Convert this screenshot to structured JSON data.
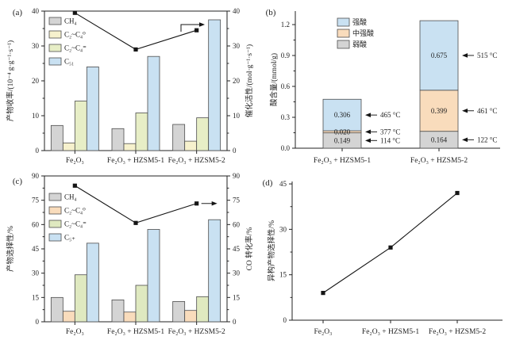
{
  "figure": {
    "background": "#ffffff",
    "text_color": "#1f1f1f",
    "line_color": "#151515",
    "bar_stroke": "#4d4d4d"
  },
  "palette": {
    "gray": "#d4d4d4",
    "yellow": "#f6f1cd",
    "green_a": "#e7eec6",
    "green_c": "#dfe9c0",
    "blue": "#c9e1f2",
    "peach": "#f9dcbc"
  },
  "chart_data": [
    {
      "id": "a",
      "panel_label": "(a)",
      "type": "bar",
      "subtype": "grouped-bar-with-line",
      "categories": [
        "Fe₂O₃",
        "Fe₂O₃ + HZSM5-1",
        "Fe₂O₃ + HZSM5-2"
      ],
      "series": [
        {
          "name": "CH₄",
          "color_key": "gray",
          "values": [
            7.2,
            6.3,
            7.5
          ]
        },
        {
          "name": "C₂~C₄⁰",
          "color_key": "yellow",
          "values": [
            2.2,
            2.0,
            2.7
          ]
        },
        {
          "name": "C₂~C₄⁼",
          "color_key": "green_a",
          "values": [
            14.2,
            10.8,
            9.4
          ]
        },
        {
          "name": "C₅₁",
          "color_key": "blue",
          "values": [
            24,
            27,
            37.5
          ]
        }
      ],
      "line_series": {
        "name": "催化活性",
        "axis": "right",
        "values": [
          39.5,
          29,
          34.5
        ]
      },
      "ylabel": "产物收率/(10⁻⁴ g·g⁻¹·s⁻¹)",
      "ylabel_right": "催化活性/(mol·g⁻¹·s⁻¹)",
      "ylim": [
        0,
        40
      ],
      "yticks": [
        0,
        10,
        20,
        30,
        40
      ],
      "ytick_labels": [
        "0",
        "10",
        "20",
        "30",
        "40"
      ],
      "minor_step": 5,
      "legend_position": "upper-left",
      "grid": false,
      "legend": [
        {
          "label": "CH₄",
          "color_key": "gray"
        },
        {
          "label": "C₂~C₄⁰",
          "color_key": "yellow"
        },
        {
          "label": "C₂~C₄⁼",
          "color_key": "green_a"
        },
        {
          "label": "C₅₁",
          "color_key": "blue"
        }
      ],
      "right_axis_indicator": true
    },
    {
      "id": "b",
      "panel_label": "(b)",
      "type": "bar",
      "subtype": "stacked-bar",
      "categories": [
        "Fe₂O₃ + HZSM5-1",
        "Fe₂O₃ + HZSM5-2"
      ],
      "series": [
        {
          "name": "弱酸",
          "color_key": "gray",
          "values": [
            0.149,
            0.164
          ]
        },
        {
          "name": "中强酸",
          "color_key": "peach",
          "values": [
            0.02,
            0.399
          ]
        },
        {
          "name": "强酸",
          "color_key": "blue",
          "values": [
            0.306,
            0.675
          ]
        }
      ],
      "segment_labels": [
        [
          "0.149",
          "0.020",
          "0.306"
        ],
        [
          "0.164",
          "0.399",
          "0.675"
        ]
      ],
      "annotations": [
        {
          "bar": 0,
          "segment": 2,
          "text": "465 °C"
        },
        {
          "bar": 0,
          "segment": 1,
          "text": "377 °C"
        },
        {
          "bar": 0,
          "segment": 0,
          "text": "114 °C"
        },
        {
          "bar": 1,
          "segment": 2,
          "text": "515 °C"
        },
        {
          "bar": 1,
          "segment": 1,
          "text": "461 °C"
        },
        {
          "bar": 1,
          "segment": 0,
          "text": "122 °C"
        }
      ],
      "ylabel": "酸含量/(mmol/g)",
      "ylim": [
        0,
        1.331
      ],
      "yticks": [
        0,
        0.3,
        0.6,
        0.9,
        1.2
      ],
      "ytick_labels": [
        "0.0",
        "0.3",
        "0.6",
        "0.9",
        "1.2"
      ],
      "minor_step": 0.15,
      "legend_position": "upper-left",
      "grid": false,
      "legend": [
        {
          "label": "强酸",
          "color_key": "blue"
        },
        {
          "label": "中强酸",
          "color_key": "peach"
        },
        {
          "label": "弱酸",
          "color_key": "gray"
        }
      ]
    },
    {
      "id": "c",
      "panel_label": "(c)",
      "type": "bar",
      "subtype": "grouped-bar-with-line",
      "categories": [
        "Fe₂O₃",
        "Fe₂O₃ + HZSM5-1",
        "Fe₂O₃ + HZSM5-2"
      ],
      "series": [
        {
          "name": "CH₄",
          "color_key": "gray",
          "values": [
            15,
            13.5,
            12.5
          ]
        },
        {
          "name": "C₂~C₄⁰",
          "color_key": "peach",
          "values": [
            6.5,
            6,
            7
          ]
        },
        {
          "name": "C₂~C₄⁼",
          "color_key": "green_c",
          "values": [
            29,
            22.5,
            15.5
          ]
        },
        {
          "name": "C₅₊",
          "color_key": "blue",
          "values": [
            48.5,
            57,
            63
          ]
        }
      ],
      "line_series": {
        "name": "CO 转化率",
        "axis": "right",
        "values": [
          84,
          61,
          73
        ]
      },
      "ylabel": "产物选择性/%",
      "ylabel_right": "CO 转化率/%",
      "ylim": [
        0,
        90
      ],
      "yticks": [
        0,
        15,
        30,
        45,
        60,
        75,
        90
      ],
      "ytick_labels": [
        "0",
        "15",
        "30",
        "45",
        "60",
        "75",
        "90"
      ],
      "minor_step": 7.5,
      "legend_position": "upper-left",
      "grid": false,
      "legend": [
        {
          "label": "CH₄",
          "color_key": "gray"
        },
        {
          "label": "C₂~C₄⁰",
          "color_key": "peach"
        },
        {
          "label": "C₂~C₄⁼",
          "color_key": "green_c"
        },
        {
          "label": "C₅₊",
          "color_key": "blue"
        }
      ],
      "point_arrow_on_last": true
    },
    {
      "id": "d",
      "panel_label": "(d)",
      "type": "line",
      "categories": [
        "Fe₂O₃",
        "Fe₂O₃ + HZSM5-1",
        "Fe₂O₃ + HZSM5-2"
      ],
      "line_series": {
        "name": "异构产物选择性",
        "values": [
          9,
          24,
          42
        ]
      },
      "ylabel": "异构产物选择性/%",
      "ylim": [
        0,
        45.8
      ],
      "yticks": [
        0,
        15,
        30,
        45
      ],
      "ytick_labels": [
        "0",
        "15",
        "30",
        "45"
      ],
      "minor_step": 7.5,
      "grid": false
    }
  ]
}
